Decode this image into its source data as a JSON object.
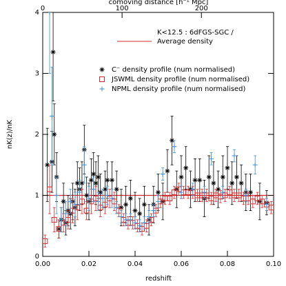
{
  "chart_data": {
    "type": "errorbar",
    "xlabel": "redshift",
    "ylabel": "nK(z)/nK",
    "x2label": "comoving distance [h⁻¹ Mpc]",
    "xlim": [
      0,
      0.1
    ],
    "ylim": [
      0,
      4
    ],
    "xticks": [
      {
        "value": 0,
        "label": "0.00"
      },
      {
        "value": 0.02,
        "label": "0.02"
      },
      {
        "value": 0.04,
        "label": "0.04"
      },
      {
        "value": 0.06,
        "label": "0.06"
      },
      {
        "value": 0.08,
        "label": "0.08"
      },
      {
        "value": 0.1,
        "label": "0.10"
      }
    ],
    "yticks": [
      0,
      1,
      2,
      3,
      4
    ],
    "x2lim": [
      0,
      291
    ],
    "x2ticks": [
      0,
      100,
      200
    ],
    "legend_title": "K<12.5 : 6dFGS-SGC /",
    "reference_line": {
      "name": "Average density",
      "value": 1,
      "color": "#d62728"
    },
    "series": [
      {
        "name": "C⁻ density profile (num normalised)",
        "color": "#000000",
        "marker": "asterisk",
        "x": [
          0.002,
          0.004,
          0.0045,
          0.005,
          0.006,
          0.007,
          0.008,
          0.009,
          0.01,
          0.011,
          0.012,
          0.013,
          0.014,
          0.015,
          0.016,
          0.017,
          0.018,
          0.019,
          0.02,
          0.021,
          0.022,
          0.023,
          0.024,
          0.025,
          0.027,
          0.028,
          0.03,
          0.032,
          0.034,
          0.036,
          0.038,
          0.04,
          0.042,
          0.044,
          0.046,
          0.048,
          0.05,
          0.052,
          0.054,
          0.056,
          0.058,
          0.06,
          0.062,
          0.064,
          0.066,
          0.068,
          0.07,
          0.072,
          0.074,
          0.076,
          0.078,
          0.08,
          0.082,
          0.084,
          0.086,
          0.088,
          0.09,
          0.094,
          0.097
        ],
        "values": [
          1.5,
          1.55,
          3.35,
          2.0,
          1.3,
          0.45,
          0.6,
          0.9,
          0.55,
          0.75,
          0.7,
          0.9,
          0.8,
          1.2,
          1.1,
          1.2,
          1.75,
          1.0,
          0.9,
          1.25,
          1.35,
          1.2,
          1.3,
          1.05,
          1.1,
          1.25,
          1.25,
          1.1,
          0.8,
          0.85,
          0.95,
          0.75,
          0.7,
          0.85,
          0.6,
          0.85,
          1.05,
          0.9,
          1.4,
          1.9,
          1.1,
          1.3,
          1.45,
          1.1,
          1.25,
          1.25,
          0.95,
          1.3,
          1.2,
          1.1,
          1.3,
          1.45,
          1.2,
          1.3,
          1.2,
          1.05,
          1.05,
          0.9,
          0.88
        ],
        "errors": [
          0.6,
          0.5,
          0.8,
          0.5,
          0.4,
          0.15,
          0.2,
          0.3,
          0.2,
          0.25,
          0.25,
          0.3,
          0.3,
          0.35,
          0.35,
          0.35,
          0.4,
          0.3,
          0.3,
          0.35,
          0.35,
          0.35,
          0.35,
          0.3,
          0.3,
          0.3,
          0.3,
          0.3,
          0.3,
          0.3,
          0.3,
          0.3,
          0.25,
          0.3,
          0.25,
          0.3,
          0.3,
          0.3,
          0.35,
          0.4,
          0.3,
          0.35,
          0.35,
          0.3,
          0.35,
          0.35,
          0.3,
          0.35,
          0.35,
          0.3,
          0.35,
          0.35,
          0.35,
          0.35,
          0.3,
          0.3,
          0.3,
          0.3,
          0.2
        ]
      },
      {
        "name": "JSWML density profile (num normalised)",
        "color": "#d62728",
        "marker": "square",
        "x": [
          0.001,
          0.003,
          0.005,
          0.007,
          0.009,
          0.011,
          0.013,
          0.015,
          0.017,
          0.019,
          0.021,
          0.023,
          0.025,
          0.027,
          0.029,
          0.031,
          0.033,
          0.035,
          0.037,
          0.039,
          0.041,
          0.043,
          0.045,
          0.047,
          0.049,
          0.051,
          0.053,
          0.055,
          0.057,
          0.059,
          0.061,
          0.063,
          0.065,
          0.067,
          0.069,
          0.071,
          0.073,
          0.075,
          0.077,
          0.079,
          0.081,
          0.083,
          0.085,
          0.087,
          0.089,
          0.091,
          0.093,
          0.095,
          0.097,
          0.099
        ],
        "values": [
          0.25,
          1.1,
          0.6,
          0.45,
          0.55,
          0.6,
          0.75,
          0.8,
          0.9,
          0.75,
          0.9,
          0.95,
          0.8,
          0.85,
          0.95,
          0.9,
          0.75,
          0.6,
          0.55,
          0.55,
          0.5,
          0.45,
          0.5,
          0.6,
          0.75,
          0.9,
          0.95,
          0.95,
          1.05,
          1.1,
          1.05,
          1.05,
          1.05,
          1.0,
          1.0,
          1.0,
          0.95,
          1.0,
          0.98,
          1.0,
          1.05,
          1.0,
          1.0,
          0.95,
          0.95,
          0.9,
          0.95,
          0.9,
          0.85,
          0.8
        ],
        "errors": [
          0.1,
          0.4,
          0.2,
          0.15,
          0.15,
          0.15,
          0.2,
          0.2,
          0.2,
          0.15,
          0.2,
          0.2,
          0.15,
          0.15,
          0.15,
          0.15,
          0.1,
          0.1,
          0.1,
          0.1,
          0.1,
          0.1,
          0.1,
          0.1,
          0.1,
          0.1,
          0.1,
          0.1,
          0.1,
          0.1,
          0.1,
          0.1,
          0.1,
          0.1,
          0.1,
          0.1,
          0.1,
          0.1,
          0.1,
          0.1,
          0.1,
          0.1,
          0.1,
          0.1,
          0.1,
          0.1,
          0.1,
          0.1,
          0.1,
          0.1
        ]
      },
      {
        "name": "NPML density profile (num normalised)",
        "color": "#3a8fd8",
        "marker": "plus",
        "x": [
          0.003,
          0.004,
          0.006,
          0.008,
          0.01,
          0.012,
          0.014,
          0.016,
          0.018,
          0.02,
          0.022,
          0.024,
          0.026,
          0.028,
          0.03,
          0.032,
          0.034,
          0.036,
          0.038,
          0.04,
          0.042,
          0.044,
          0.046,
          0.048,
          0.05,
          0.052,
          0.057,
          0.06,
          0.065,
          0.07,
          0.073,
          0.078,
          0.083,
          0.088,
          0.092,
          0.097
        ],
        "values": [
          4.0,
          2.3,
          1.0,
          0.6,
          0.7,
          0.9,
          0.85,
          1.05,
          1.5,
          0.95,
          1.1,
          0.9,
          0.95,
          1.0,
          0.95,
          0.8,
          0.65,
          0.6,
          0.6,
          0.55,
          0.5,
          0.55,
          0.65,
          0.75,
          0.9,
          1.35,
          1.8,
          1.05,
          1.1,
          1.05,
          1.6,
          1.05,
          1.65,
          1.0,
          1.5,
          0.85
        ],
        "errors": [
          1.0,
          0.8,
          0.3,
          0.2,
          0.2,
          0.2,
          0.2,
          0.2,
          0.3,
          0.2,
          0.2,
          0.15,
          0.15,
          0.15,
          0.15,
          0.1,
          0.1,
          0.1,
          0.1,
          0.1,
          0.1,
          0.1,
          0.1,
          0.1,
          0.1,
          0.1,
          0.1,
          0.1,
          0.1,
          0.1,
          0.1,
          0.1,
          0.1,
          0.1,
          0.15,
          0.1
        ]
      }
    ]
  }
}
